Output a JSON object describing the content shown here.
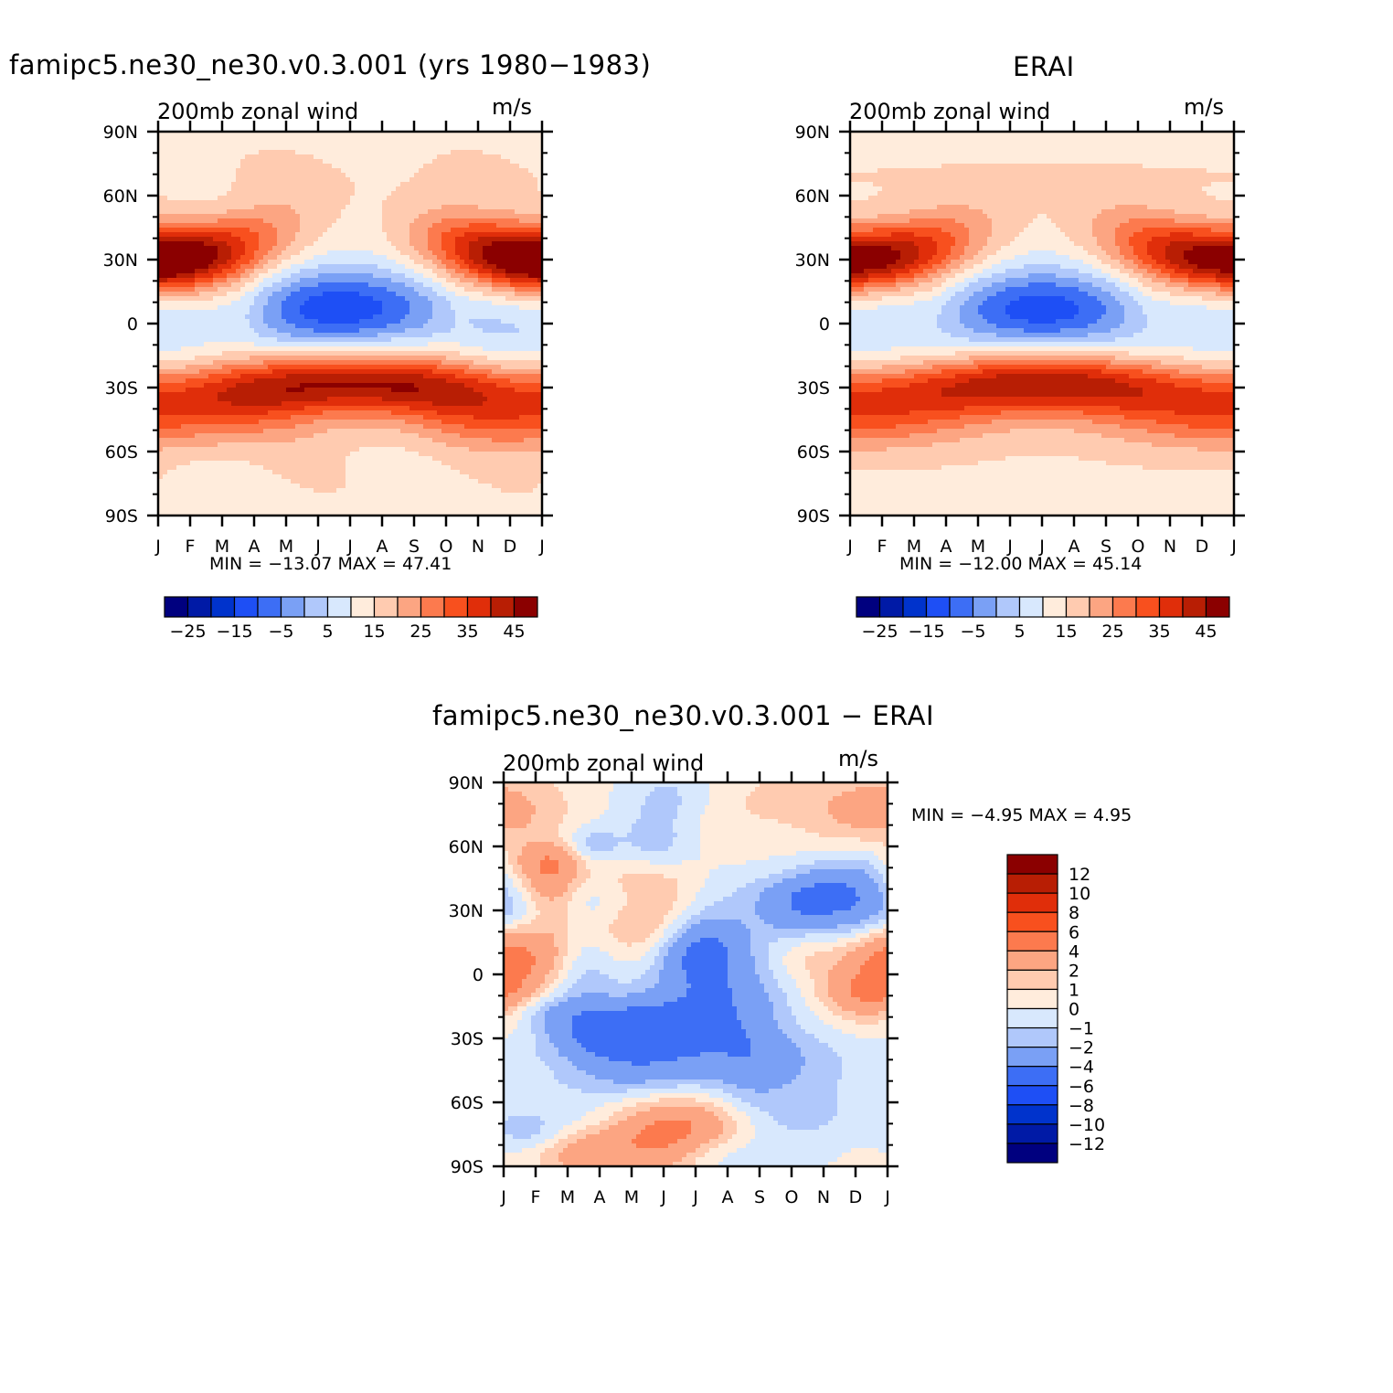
{
  "titles": {
    "model": "famipc5.ne30_ne30.v0.3.001 (yrs 1980−1983)",
    "obs": "ERAI",
    "diff": "famipc5.ne30_ne30.v0.3.001 − ERAI"
  },
  "panel_label": "200mb zonal wind",
  "units": "m/s",
  "stats": {
    "model": "MIN = −13.07 MAX =  47.41",
    "obs": "MIN = −12.00 MAX =  45.14",
    "diff": "MIN =   −4.95 MAX =    4.95"
  },
  "colors": {
    "abs_levels": [
      "#00007f",
      "#001aa6",
      "#0033cc",
      "#1e4ff5",
      "#3d6ef5",
      "#7aa0f5",
      "#b0c8fb",
      "#d8e8fd",
      "#ffecdc",
      "#ffcbb0",
      "#fca582",
      "#fc7a4e",
      "#f8501e",
      "#e02e0a",
      "#b81e04",
      "#8b0000"
    ],
    "diff_levels": [
      "#00007f",
      "#001aa6",
      "#0033cc",
      "#1e4ff5",
      "#3d6ef5",
      "#7aa0f5",
      "#b0c8fb",
      "#d8e8fd",
      "#ffecdc",
      "#ffcbb0",
      "#fca582",
      "#fc7a4e",
      "#f8501e",
      "#e02e0a",
      "#b81e04",
      "#8b0000"
    ]
  },
  "chart_data": [
    {
      "type": "heatmap",
      "id": "model",
      "title": "famipc5.ne30_ne30.v0.3.001 (yrs 1980−1983)",
      "left_label": "200mb zonal wind",
      "right_label": "m/s",
      "x_ticks": [
        "J",
        "F",
        "M",
        "A",
        "M",
        "J",
        "J",
        "A",
        "S",
        "O",
        "N",
        "D",
        "J"
      ],
      "y_ticks": [
        "90N",
        "60N",
        "30N",
        "0",
        "30S",
        "60S",
        "90S"
      ],
      "ylim": [
        -90,
        90
      ],
      "min": -13.07,
      "max": 47.41,
      "colorbar_labels": [
        "−25",
        "−15",
        "−5",
        "5",
        "15",
        "25",
        "35",
        "45"
      ],
      "colorbar_levels": [
        -30,
        -25,
        -20,
        -15,
        -10,
        -5,
        0,
        5,
        10,
        15,
        20,
        25,
        30,
        35,
        40,
        45
      ],
      "features": {
        "nh_jet_lat": 30,
        "nh_jet_max": 47.4,
        "sh_jet_lat": -30,
        "sh_jet_max": 40,
        "trop_min": -13.07,
        "trop_min_lat": 8
      }
    },
    {
      "type": "heatmap",
      "id": "obs",
      "title": "ERAI",
      "left_label": "200mb zonal wind",
      "right_label": "m/s",
      "x_ticks": [
        "J",
        "F",
        "M",
        "A",
        "M",
        "J",
        "J",
        "A",
        "S",
        "O",
        "N",
        "D",
        "J"
      ],
      "y_ticks": [
        "90N",
        "60N",
        "30N",
        "0",
        "30S",
        "60S",
        "90S"
      ],
      "ylim": [
        -90,
        90
      ],
      "min": -12.0,
      "max": 45.14,
      "colorbar_labels": [
        "−25",
        "−15",
        "−5",
        "5",
        "15",
        "25",
        "35",
        "45"
      ],
      "colorbar_levels": [
        -30,
        -25,
        -20,
        -15,
        -10,
        -5,
        0,
        5,
        10,
        15,
        20,
        25,
        30,
        35,
        40,
        45
      ],
      "features": {
        "nh_jet_lat": 30,
        "nh_jet_max": 45.1,
        "sh_jet_lat": -30,
        "sh_jet_max": 38,
        "trop_min": -12.0,
        "trop_min_lat": 7
      }
    },
    {
      "type": "heatmap",
      "id": "diff",
      "title": "famipc5.ne30_ne30.v0.3.001 − ERAI",
      "left_label": "200mb zonal wind",
      "right_label": "m/s",
      "x_ticks": [
        "J",
        "F",
        "M",
        "A",
        "M",
        "J",
        "J",
        "A",
        "S",
        "O",
        "N",
        "D",
        "J"
      ],
      "y_ticks": [
        "90N",
        "60N",
        "30N",
        "0",
        "30S",
        "60S",
        "90S"
      ],
      "ylim": [
        -90,
        90
      ],
      "min": -4.95,
      "max": 4.95,
      "colorbar_labels": [
        "12",
        "10",
        "8",
        "6",
        "4",
        "2",
        "1",
        "0",
        "−1",
        "−2",
        "−4",
        "−6",
        "−8",
        "−10",
        "−12"
      ],
      "colorbar_levels": [
        -12,
        -10,
        -8,
        -6,
        -4,
        -2,
        -1,
        0,
        1,
        2,
        4,
        6,
        8,
        10,
        12
      ]
    }
  ]
}
